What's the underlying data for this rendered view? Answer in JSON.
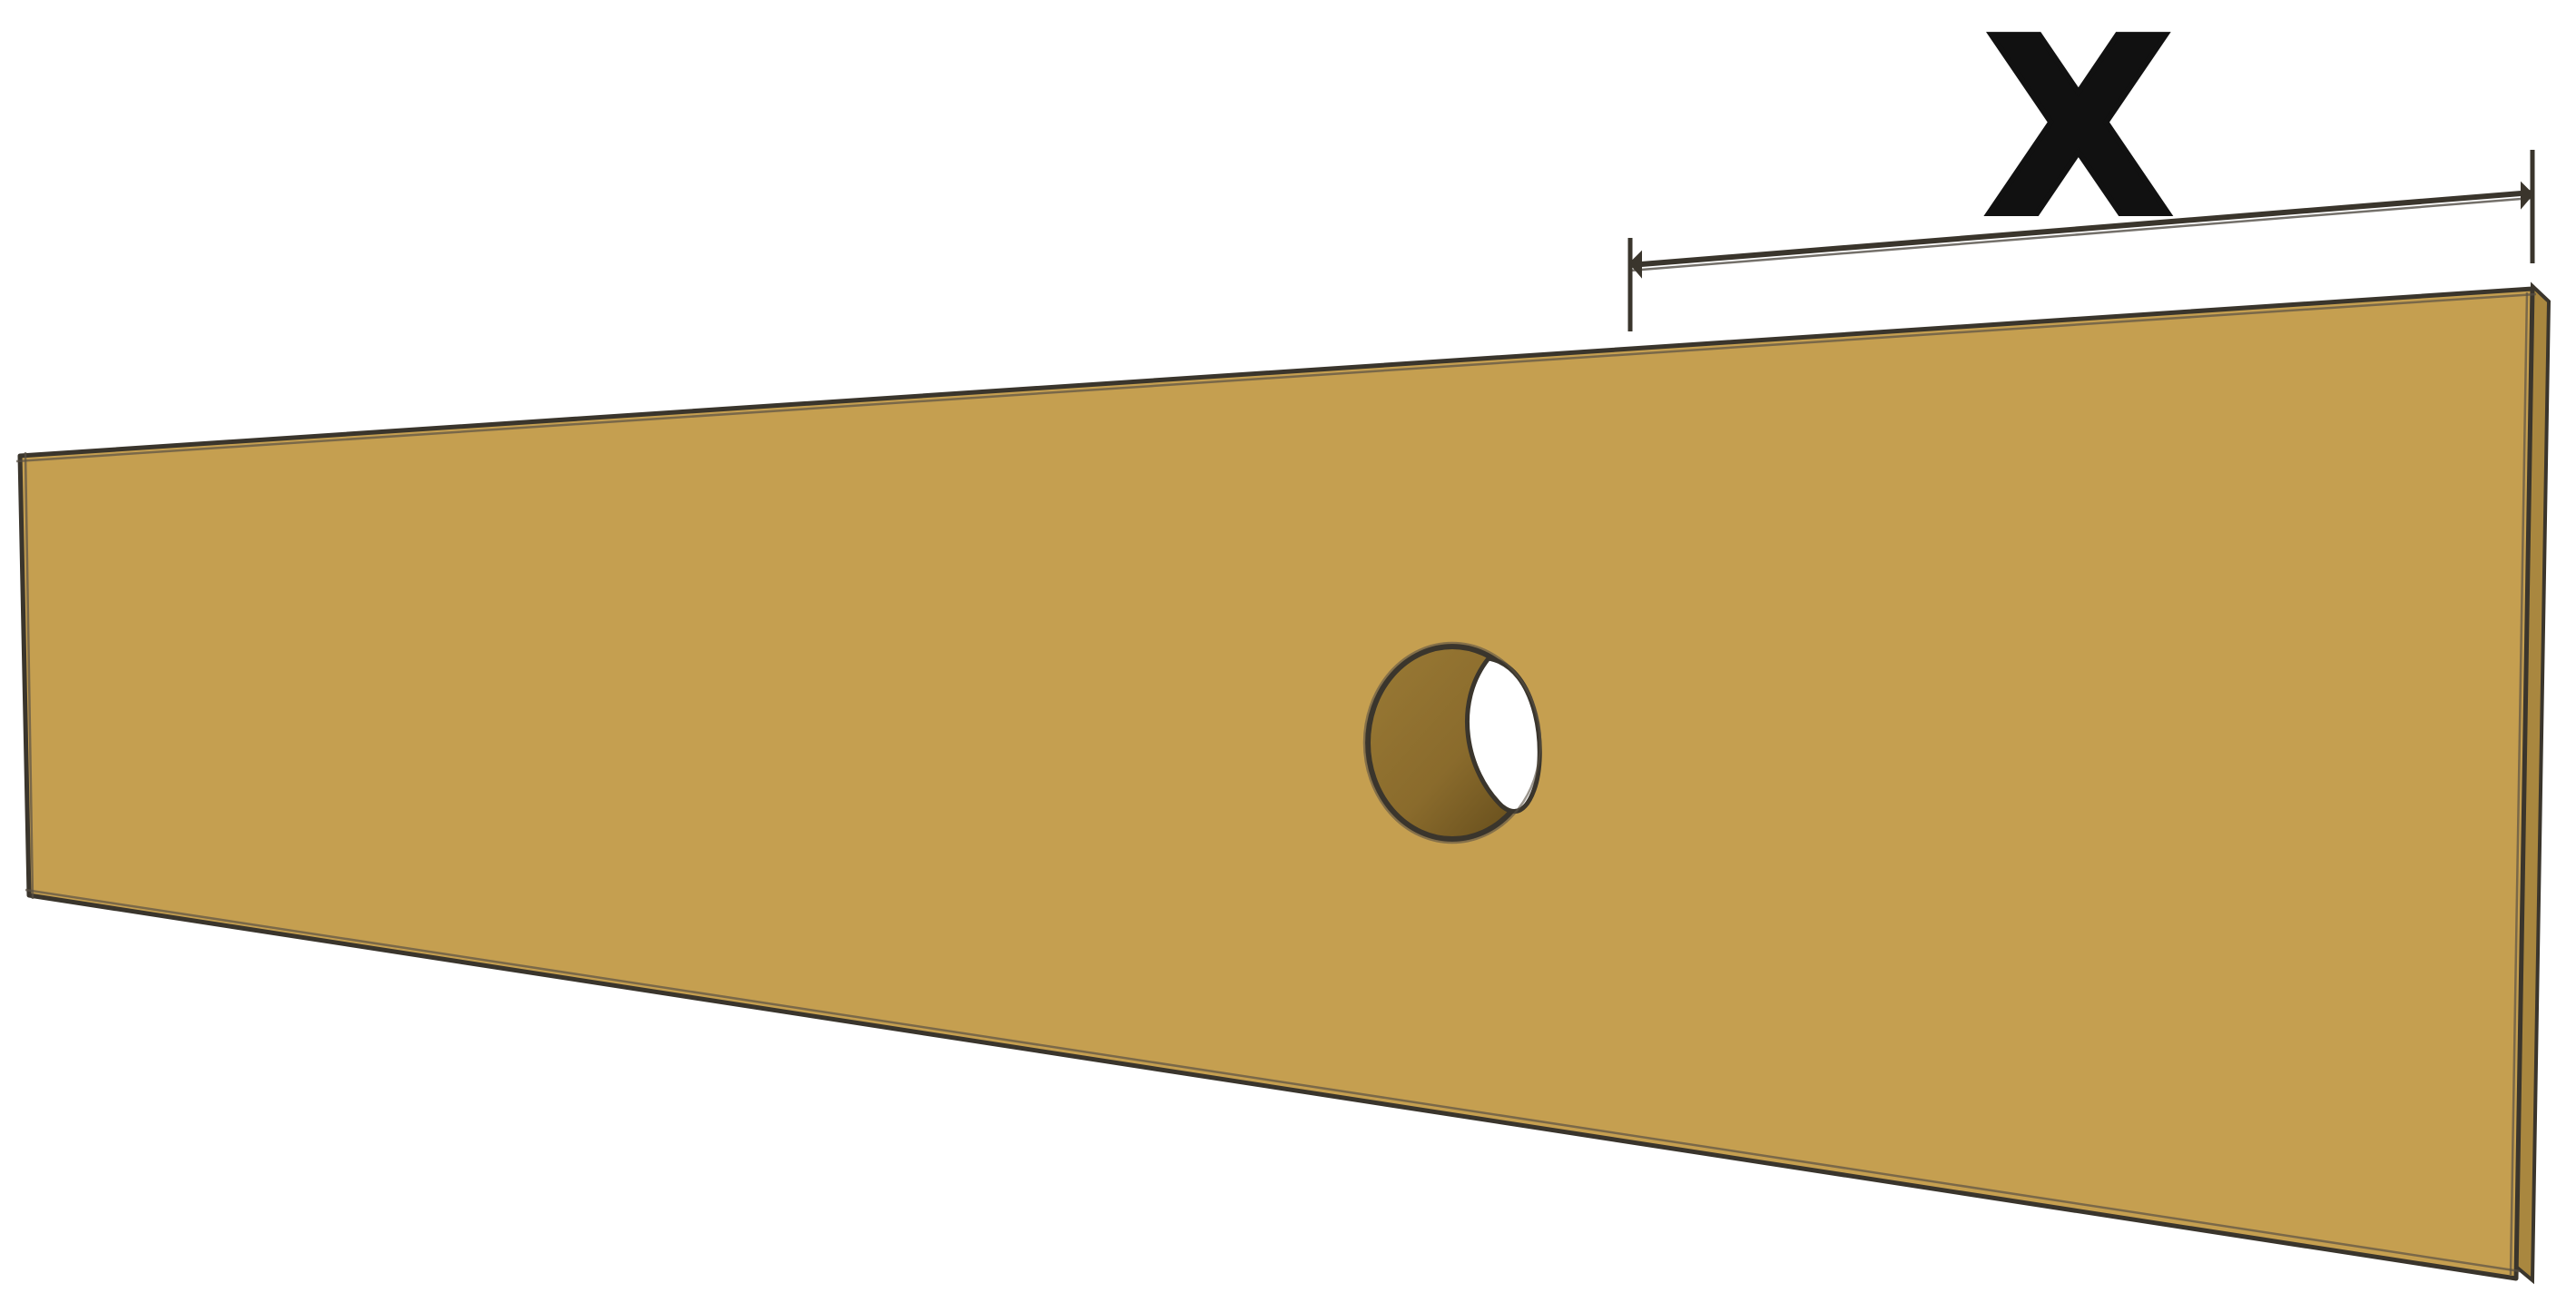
{
  "diagram": {
    "dimension_label": "X"
  },
  "colors": {
    "board_fill": "#c59f50",
    "board_edge": "#a9873f",
    "outline": "#3a352c",
    "hole_inner": "#8c6d2e",
    "hole_shadow": "#6e5422",
    "background": "#ffffff",
    "label": "#111111"
  }
}
